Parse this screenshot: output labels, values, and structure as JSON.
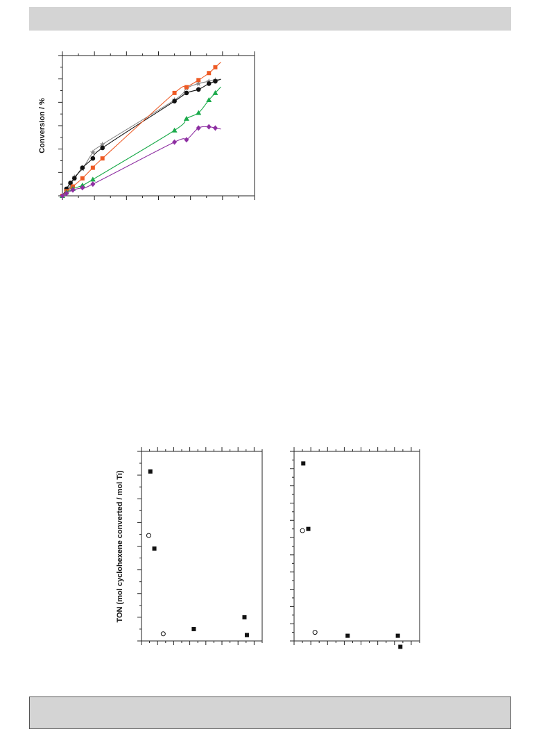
{
  "page": {
    "top_band_color": "#d4d4d4",
    "bottom_band_color": "#d4d4d4"
  },
  "chart_data": [
    {
      "type": "scatter",
      "title": "",
      "xlabel": "",
      "ylabel": "Conversion / %",
      "xlim": [
        0,
        24
      ],
      "ylim": [
        0,
        60
      ],
      "x_ticks": 12,
      "y_ticks": 12,
      "series": [
        {
          "color": "#888888",
          "marker": "star",
          "fitted_curve": true,
          "x": [
            0,
            0.5,
            1,
            1.5,
            2.5,
            3.8,
            5,
            14,
            15.5,
            17,
            18.3,
            19.1
          ],
          "y": [
            0,
            2,
            3.5,
            8,
            11.5,
            18.5,
            22,
            41,
            46,
            48,
            49,
            49.5
          ]
        },
        {
          "color": "#111111",
          "marker": "circle",
          "fitted_curve": true,
          "x": [
            0,
            0.5,
            1,
            1.5,
            2.5,
            3.8,
            5,
            14,
            15.5,
            17,
            18.3,
            19.1
          ],
          "y": [
            0,
            3,
            5.5,
            7.5,
            12,
            16,
            20.5,
            40.5,
            44,
            45.5,
            48,
            49
          ]
        },
        {
          "color": "#ee5a24",
          "marker": "square",
          "fitted_curve": true,
          "x": [
            0,
            0.5,
            1.3,
            2.5,
            3.8,
            5,
            14,
            15.5,
            17,
            18.3,
            19.1
          ],
          "y": [
            0,
            2,
            4,
            7.5,
            12,
            16,
            44,
            46.5,
            49.5,
            52.5,
            55
          ]
        },
        {
          "color": "#1aaa4a",
          "marker": "triangle",
          "fitted_curve": true,
          "x": [
            0,
            0.5,
            1.3,
            2.5,
            3.8,
            14,
            15.5,
            17,
            18.3,
            19.1
          ],
          "y": [
            0,
            1.5,
            3,
            4.5,
            7,
            28,
            33,
            35.5,
            41,
            44
          ]
        },
        {
          "color": "#8e2fa2",
          "marker": "diamond",
          "fitted_curve": true,
          "x": [
            0,
            0.5,
            1.3,
            2.5,
            3.8,
            14,
            15.5,
            17,
            18.3,
            19.1
          ],
          "y": [
            0,
            1,
            2.5,
            3.5,
            5,
            23,
            24,
            29,
            29.5,
            29
          ]
        }
      ]
    },
    {
      "type": "scatter",
      "title": "",
      "xlabel": "",
      "ylabel": "TON (mol cyclohexene converted / mol Ti)",
      "xlim": [
        0,
        15
      ],
      "ylim": [
        0,
        80
      ],
      "x_ticks": 15,
      "y_ticks": 16,
      "series": [
        {
          "marker": "filled-square",
          "color": "#111111",
          "x": [
            1.1,
            1.6,
            6.5,
            12.8,
            13.1
          ],
          "y": [
            71.5,
            39,
            5,
            10,
            2.5
          ]
        },
        {
          "marker": "open-circle",
          "color": "#111111",
          "x": [
            0.9,
            2.7
          ],
          "y": [
            44.5,
            3
          ]
        }
      ]
    },
    {
      "type": "scatter",
      "title": "",
      "xlabel": "",
      "ylabel": "",
      "xlim": [
        0,
        15
      ],
      "ylim": [
        0,
        55
      ],
      "x_ticks": 15,
      "y_ticks": 22,
      "series": [
        {
          "marker": "filled-square",
          "color": "#111111",
          "x": [
            1.1,
            1.7,
            6.4,
            12.4,
            12.7
          ],
          "y": [
            51.5,
            32.5,
            1.5,
            1.5,
            -1.7
          ]
        },
        {
          "marker": "open-circle",
          "color": "#111111",
          "x": [
            1.0,
            2.5
          ],
          "y": [
            32,
            2.5
          ]
        }
      ]
    }
  ]
}
